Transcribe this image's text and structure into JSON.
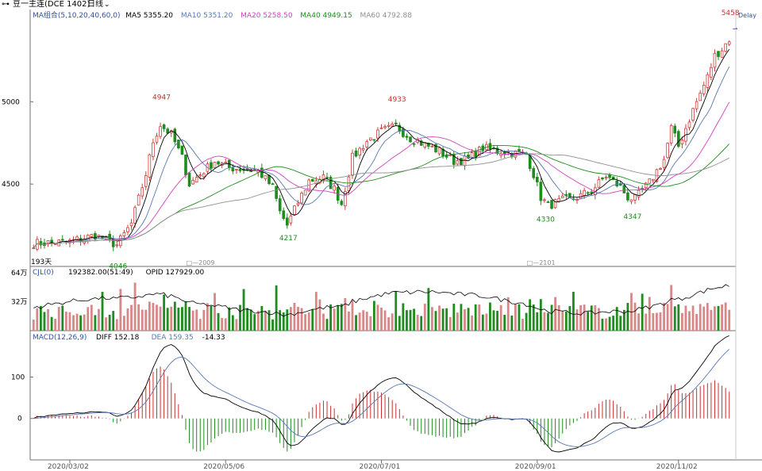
{
  "window": {
    "title": "豆一主连(DCE 1402)",
    "period": "日线",
    "delay": "Delay",
    "link_icon": "link-icon",
    "chevron_icon": "chevron-down-icon"
  },
  "legends": {
    "ma": {
      "name": "MA组合(5,10,20,40,60,0)",
      "items": [
        {
          "label": "MA5 5355.20",
          "color": "#000000"
        },
        {
          "label": "MA10 5351.20",
          "color": "#5878b0"
        },
        {
          "label": "MA20 5258.50",
          "color": "#d040c0"
        },
        {
          "label": "MA40 4949.15",
          "color": "#1e8c1e"
        },
        {
          "label": "MA60 4792.88",
          "color": "#909090"
        }
      ]
    },
    "vol": {
      "name": "CJL(0)",
      "items": [
        {
          "label": "192382.00(51:49)",
          "color": "#000000"
        },
        {
          "label": "OPID 127929.00",
          "color": "#000000"
        }
      ]
    },
    "macd": {
      "name": "MACD(12,26,9)",
      "items": [
        {
          "label": "DIFF 152.18",
          "color": "#000000"
        },
        {
          "label": "DEA 159.35",
          "color": "#5878b0"
        },
        {
          "label": "-14.33",
          "color": "#000000"
        }
      ]
    }
  },
  "colors": {
    "up": "#d23c3c",
    "down": "#1e8c1e",
    "vol_up": "#d88888",
    "vol_down": "#1e8c1e",
    "axis": "#707070",
    "text_blue": "#3050a0"
  },
  "chart_data": [
    {
      "type": "candlestick",
      "note_bars": "193天",
      "y_ticks": [
        4500,
        5000
      ],
      "ylim": [
        4000,
        5560
      ],
      "markers": [
        {
          "label": "2009",
          "bar": 43
        },
        {
          "label": "2101",
          "bar": 137
        }
      ],
      "annotations": [
        {
          "text": "4947",
          "bar": 35,
          "value": 4947
        },
        {
          "text": "4046",
          "bar": 23,
          "value": 4046
        },
        {
          "text": "4217",
          "bar": 70,
          "value": 4217
        },
        {
          "text": "4933",
          "bar": 100,
          "value": 4933
        },
        {
          "text": "4330",
          "bar": 141,
          "value": 4330
        },
        {
          "text": "4347",
          "bar": 165,
          "value": 4347
        },
        {
          "text": "5458",
          "bar": 192,
          "value": 5458
        }
      ],
      "anchors": [
        [
          0,
          4140
        ],
        [
          10,
          4150
        ],
        [
          17,
          4190
        ],
        [
          23,
          4130
        ],
        [
          27,
          4260
        ],
        [
          31,
          4560
        ],
        [
          33,
          4760
        ],
        [
          35,
          4860
        ],
        [
          38,
          4800
        ],
        [
          41,
          4660
        ],
        [
          43,
          4500
        ],
        [
          46,
          4560
        ],
        [
          50,
          4640
        ],
        [
          54,
          4600
        ],
        [
          58,
          4590
        ],
        [
          62,
          4580
        ],
        [
          66,
          4480
        ],
        [
          68,
          4330
        ],
        [
          70,
          4250
        ],
        [
          73,
          4390
        ],
        [
          76,
          4520
        ],
        [
          80,
          4540
        ],
        [
          83,
          4470
        ],
        [
          85,
          4380
        ],
        [
          88,
          4660
        ],
        [
          92,
          4760
        ],
        [
          96,
          4820
        ],
        [
          100,
          4850
        ],
        [
          104,
          4780
        ],
        [
          108,
          4740
        ],
        [
          112,
          4700
        ],
        [
          116,
          4640
        ],
        [
          120,
          4650
        ],
        [
          124,
          4720
        ],
        [
          128,
          4700
        ],
        [
          132,
          4690
        ],
        [
          136,
          4680
        ],
        [
          138,
          4560
        ],
        [
          140,
          4420
        ],
        [
          142,
          4370
        ],
        [
          146,
          4400
        ],
        [
          150,
          4420
        ],
        [
          154,
          4460
        ],
        [
          158,
          4550
        ],
        [
          162,
          4480
        ],
        [
          164,
          4420
        ],
        [
          166,
          4410
        ],
        [
          170,
          4510
        ],
        [
          174,
          4650
        ],
        [
          176,
          4840
        ],
        [
          178,
          4730
        ],
        [
          182,
          4950
        ],
        [
          186,
          5150
        ],
        [
          188,
          5280
        ],
        [
          190,
          5320
        ],
        [
          192,
          5380
        ]
      ]
    },
    {
      "type": "bar",
      "name": "volume",
      "y_ticks": [
        {
          "value": 32,
          "label": "32万"
        },
        {
          "value": 64,
          "label": "64万"
        }
      ],
      "ylim": [
        0,
        64
      ]
    },
    {
      "type": "bar",
      "name": "macd",
      "y_ticks": [
        0,
        100
      ],
      "ylim": [
        -100,
        210
      ]
    }
  ],
  "x_axis": {
    "labels": [
      {
        "text": "2020/03/02",
        "bar": 10
      },
      {
        "text": "2020/05/06",
        "bar": 53
      },
      {
        "text": "2020/07/01",
        "bar": 96
      },
      {
        "text": "2020/09/01",
        "bar": 139
      },
      {
        "text": "2020/11/02",
        "bar": 178
      }
    ]
  }
}
